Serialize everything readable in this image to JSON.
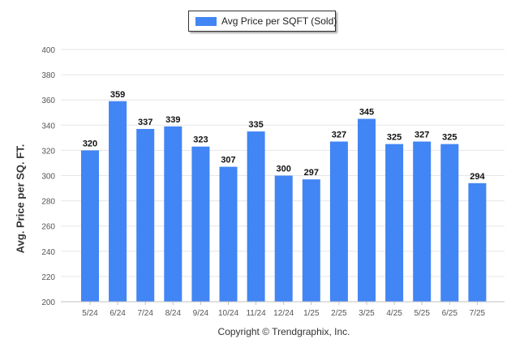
{
  "legend": {
    "label": "Avg Price per SQFT (Sold)",
    "swatch_color": "#4285f4"
  },
  "copyright": "Copyright © Trendgraphix, Inc.",
  "chart_data": {
    "type": "bar",
    "title": "",
    "xlabel": "",
    "ylabel": "Avg. Price per SQ. FT.",
    "categories": [
      "5/24",
      "6/24",
      "7/24",
      "8/24",
      "9/24",
      "10/24",
      "11/24",
      "12/24",
      "1/25",
      "2/25",
      "3/25",
      "4/25",
      "5/25",
      "6/25",
      "7/25"
    ],
    "series": [
      {
        "name": "Avg Price per SQFT (Sold)",
        "values": [
          320,
          359,
          337,
          339,
          323,
          307,
          335,
          300,
          297,
          327,
          345,
          325,
          327,
          325,
          294
        ],
        "color": "#4285f4"
      }
    ],
    "yticks": [
      200,
      220,
      240,
      260,
      280,
      300,
      320,
      340,
      360,
      380,
      400
    ],
    "ylim": [
      200,
      400
    ],
    "grid": true,
    "legend_position": "top-center",
    "data_labels": true
  }
}
